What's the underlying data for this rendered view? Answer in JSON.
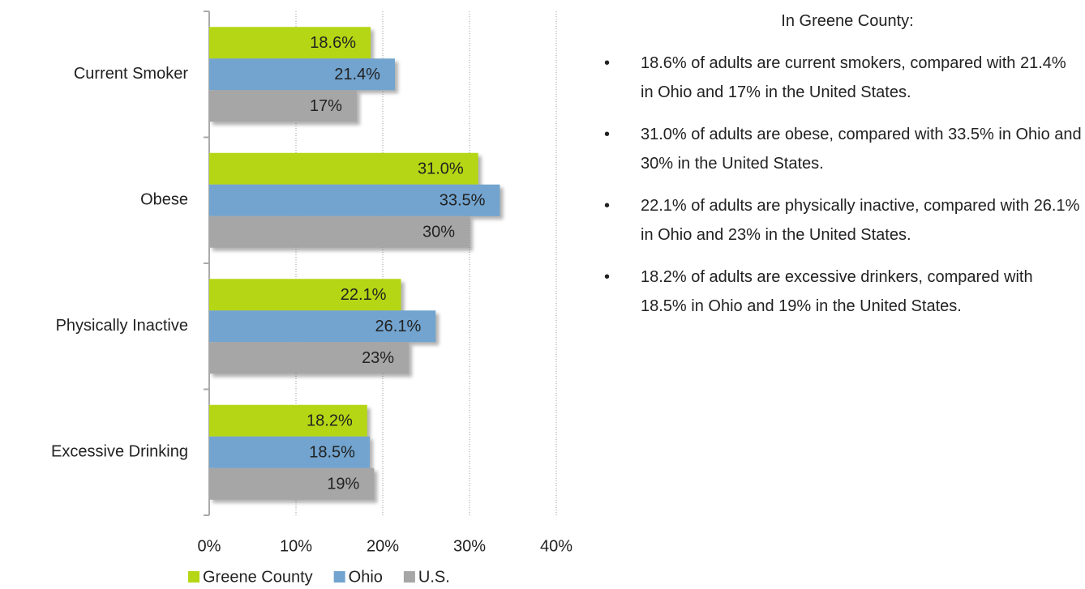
{
  "chart_data": {
    "type": "bar",
    "orientation": "horizontal",
    "categories": [
      "Current Smoker",
      "Obese",
      "Physically Inactive",
      "Excessive Drinking"
    ],
    "series": [
      {
        "name": "Greene County",
        "color": "#b5d614",
        "values": [
          18.6,
          31.0,
          22.1,
          18.2
        ],
        "value_labels": [
          "18.6%",
          "31.0%",
          "22.1%",
          "18.2%"
        ]
      },
      {
        "name": "Ohio",
        "color": "#72a4cf",
        "values": [
          21.4,
          33.5,
          26.1,
          18.5
        ],
        "value_labels": [
          "21.4%",
          "33.5%",
          "26.1%",
          "18.5%"
        ]
      },
      {
        "name": "U.S.",
        "color": "#a6a6a6",
        "values": [
          17,
          30,
          23,
          19
        ],
        "value_labels": [
          "17%",
          "30%",
          "23%",
          "19%"
        ]
      }
    ],
    "xlim": [
      0,
      40
    ],
    "xticks": [
      {
        "value": 0,
        "label": "0%"
      },
      {
        "value": 10,
        "label": "10%"
      },
      {
        "value": 20,
        "label": "20%"
      },
      {
        "value": 30,
        "label": "30%"
      },
      {
        "value": 40,
        "label": "40%"
      }
    ],
    "grid": true,
    "legend": "bottom"
  },
  "sidebar": {
    "heading": "In Greene County:",
    "bullets": [
      "18.6% of adults are current smokers, compared with 21.4% in Ohio and 17% in the United States.",
      "31.0% of adults are obese, compared with 33.5% in Ohio and 30% in the United States.",
      "22.1% of adults are physically inactive, compared with 26.1% in Ohio and 23% in the United States.",
      "18.2% of adults are excessive drinkers, compared with 18.5% in Ohio and 19% in the United States."
    ]
  }
}
